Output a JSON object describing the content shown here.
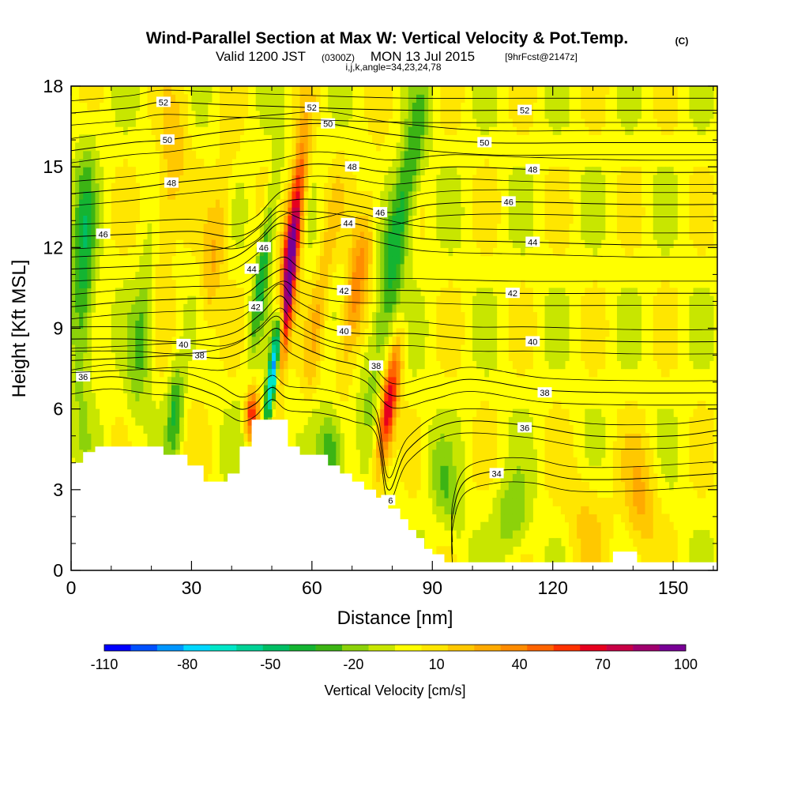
{
  "title": {
    "main": "Wind-Parallel Section at Max W: Vertical Velocity & Pot.Temp.",
    "main_unit": "(C)",
    "valid_prefix": "Valid 1200 JST",
    "valid_utc": "(0300Z)",
    "valid_date": "MON 13 Jul 2015",
    "forecast": "[9hrFcst@2147z]",
    "indices": "i,j,k,angle=34,23,24,78"
  },
  "chart_data": {
    "type": "heatmap",
    "xlabel": "Distance [nm]",
    "ylabel": "Height [Kft MSL]",
    "xlim": [
      0,
      161
    ],
    "ylim": [
      0,
      18
    ],
    "xticks": [
      0,
      30,
      60,
      90,
      120,
      150
    ],
    "yticks": [
      0,
      3,
      6,
      9,
      12,
      15,
      18
    ],
    "grid": false,
    "colorbar": {
      "label": "Vertical Velocity [cm/s]",
      "tick_labels": [
        "-110",
        "-80",
        "-50",
        "-20",
        "10",
        "40",
        "70",
        "100"
      ],
      "tick_values": [
        -110,
        -80,
        -50,
        -20,
        10,
        40,
        70,
        100
      ],
      "colors": [
        "#0000ff",
        "#0050ff",
        "#0096ff",
        "#00d7ff",
        "#00e6c8",
        "#00d296",
        "#00be64",
        "#14b432",
        "#3cb414",
        "#8cd20a",
        "#c8e600",
        "#ffff00",
        "#ffe600",
        "#ffc800",
        "#ffaa00",
        "#ff8c00",
        "#ff6400",
        "#ff3200",
        "#e6001e",
        "#c80046",
        "#a0006e",
        "#780096"
      ]
    },
    "terrain_kft": [
      [
        0,
        4.0
      ],
      [
        3,
        4.0
      ],
      [
        3,
        4.4
      ],
      [
        6,
        4.4
      ],
      [
        6,
        4.6
      ],
      [
        23,
        4.6
      ],
      [
        23,
        4.3
      ],
      [
        29,
        4.3
      ],
      [
        29,
        3.9
      ],
      [
        33,
        3.9
      ],
      [
        33,
        3.3
      ],
      [
        39,
        3.3
      ],
      [
        39,
        3.6
      ],
      [
        42,
        3.6
      ],
      [
        42,
        4.6
      ],
      [
        45,
        4.6
      ],
      [
        45,
        5.6
      ],
      [
        54,
        5.6
      ],
      [
        54,
        4.6
      ],
      [
        57,
        4.6
      ],
      [
        57,
        4.3
      ],
      [
        64,
        4.3
      ],
      [
        64,
        3.9
      ],
      [
        67,
        3.9
      ],
      [
        67,
        3.6
      ],
      [
        70,
        3.6
      ],
      [
        70,
        3.3
      ],
      [
        73,
        3.3
      ],
      [
        73,
        3.0
      ],
      [
        76,
        3.0
      ],
      [
        76,
        2.7
      ],
      [
        79,
        2.7
      ],
      [
        79,
        2.3
      ],
      [
        82,
        2.3
      ],
      [
        82,
        1.9
      ],
      [
        84,
        1.9
      ],
      [
        84,
        1.5
      ],
      [
        86,
        1.5
      ],
      [
        86,
        1.2
      ],
      [
        88,
        1.2
      ],
      [
        88,
        0.8
      ],
      [
        90,
        0.8
      ],
      [
        90,
        0.6
      ],
      [
        93,
        0.6
      ],
      [
        93,
        0.3
      ],
      [
        135,
        0.3
      ],
      [
        135,
        0.7
      ],
      [
        141,
        0.7
      ],
      [
        141,
        0.3
      ],
      [
        161,
        0.3
      ]
    ],
    "velocity_features": [
      {
        "x": 55,
        "y": 12.0,
        "sx": 1.4,
        "sy": 2.6,
        "tilt": 0.24,
        "w": 100
      },
      {
        "x": 53,
        "y": 9.5,
        "sx": 1.0,
        "sy": 1.6,
        "tilt": 0.24,
        "w": 60
      },
      {
        "x": 51,
        "y": 8.0,
        "sx": 0.9,
        "sy": 1.9,
        "tilt": 0.3,
        "w": -110
      },
      {
        "x": 48,
        "y": 11.5,
        "sx": 1.2,
        "sy": 2.5,
        "tilt": 0.3,
        "w": -40
      },
      {
        "x": 79,
        "y": 6.0,
        "sx": 1.5,
        "sy": 1.7,
        "tilt": 0.3,
        "w": 75
      },
      {
        "x": 71,
        "y": 10.5,
        "sx": 2.0,
        "sy": 2.5,
        "tilt": 0.35,
        "w": 40
      },
      {
        "x": 80,
        "y": 11.0,
        "sx": 2.3,
        "sy": 3.5,
        "tilt": 0.4,
        "w": -35
      },
      {
        "x": 84,
        "y": 15.0,
        "sx": 2.0,
        "sy": 2.5,
        "tilt": 0.45,
        "w": -20
      },
      {
        "x": 3,
        "y": 11.0,
        "sx": 2.0,
        "sy": 3.2,
        "tilt": 0.05,
        "w": -40
      },
      {
        "x": 18,
        "y": 9.0,
        "sx": 2.0,
        "sy": 2.5,
        "tilt": 0.2,
        "w": -30
      },
      {
        "x": 26,
        "y": 6.0,
        "sx": 1.3,
        "sy": 1.2,
        "tilt": 0.1,
        "w": -35
      },
      {
        "x": 65,
        "y": 4.5,
        "sx": 2.2,
        "sy": 1.2,
        "tilt": 0.0,
        "w": -40
      },
      {
        "x": 45,
        "y": 5.8,
        "sx": 1.2,
        "sy": 0.7,
        "tilt": 0.0,
        "w": 60
      },
      {
        "x": 36,
        "y": 12.0,
        "sx": 2.0,
        "sy": 2.5,
        "tilt": 0.3,
        "w": 25
      },
      {
        "x": 24,
        "y": 14.0,
        "sx": 2.5,
        "sy": 3.0,
        "tilt": 0.3,
        "w": 25
      },
      {
        "x": 110,
        "y": 2.0,
        "sx": 3.0,
        "sy": 1.0,
        "tilt": 0.0,
        "w": -25
      },
      {
        "x": 93,
        "y": 3.0,
        "sx": 2.5,
        "sy": 1.5,
        "tilt": -0.5,
        "w": -20
      },
      {
        "x": 142,
        "y": 2.5,
        "sx": 3.0,
        "sy": 1.5,
        "tilt": 0.0,
        "w": 25
      },
      {
        "x": 128,
        "y": 2.0,
        "sx": 4.0,
        "sy": 1.5,
        "tilt": 0.0,
        "w": 15
      },
      {
        "x": 62,
        "y": 10.0,
        "sx": 1.5,
        "sy": 3.0,
        "tilt": 0.3,
        "w": 20
      }
    ],
    "theta_contours": [
      {
        "level": 34,
        "labels": [
          [
            106,
            3.6
          ]
        ],
        "points": [
          [
            95,
            0.6
          ],
          [
            95,
            2.0
          ],
          [
            98,
            3.3
          ],
          [
            106,
            3.7
          ],
          [
            115,
            3.7
          ],
          [
            125,
            3.4
          ],
          [
            140,
            3.4
          ],
          [
            161,
            3.6
          ]
        ]
      },
      {
        "level": 36,
        "labels": [
          [
            3,
            7.2
          ],
          [
            79,
            2.6
          ],
          [
            113,
            5.3
          ]
        ],
        "points": [
          [
            0,
            7.0
          ],
          [
            10,
            7.2
          ],
          [
            20,
            7.0
          ],
          [
            28,
            6.9
          ],
          [
            36,
            6.5
          ],
          [
            42,
            6.0
          ],
          [
            46,
            6.2
          ],
          [
            50,
            6.8
          ],
          [
            54,
            6.4
          ],
          [
            62,
            6.3
          ],
          [
            70,
            6.0
          ],
          [
            76,
            5.5
          ],
          [
            79,
            3.0
          ],
          [
            84,
            4.5
          ],
          [
            95,
            5.5
          ],
          [
            113,
            5.4
          ],
          [
            130,
            5.0
          ],
          [
            150,
            5.0
          ],
          [
            161,
            5.2
          ]
        ]
      },
      {
        "level": 38,
        "labels": [
          [
            32,
            8.0
          ],
          [
            76,
            7.6
          ],
          [
            118,
            6.6
          ]
        ],
        "points": [
          [
            0,
            7.8
          ],
          [
            15,
            7.9
          ],
          [
            28,
            8.0
          ],
          [
            38,
            7.9
          ],
          [
            46,
            8.4
          ],
          [
            51,
            9.0
          ],
          [
            55,
            8.5
          ],
          [
            64,
            7.9
          ],
          [
            73,
            7.5
          ],
          [
            80,
            6.5
          ],
          [
            90,
            6.8
          ],
          [
            100,
            7.1
          ],
          [
            118,
            6.7
          ],
          [
            140,
            6.6
          ],
          [
            161,
            6.6
          ]
        ]
      },
      {
        "level": 40,
        "labels": [
          [
            28,
            8.4
          ],
          [
            68,
            8.9
          ],
          [
            115,
            8.5
          ]
        ],
        "points": [
          [
            0,
            8.6
          ],
          [
            15,
            8.6
          ],
          [
            28,
            8.5
          ],
          [
            40,
            8.8
          ],
          [
            47,
            9.5
          ],
          [
            52,
            10.2
          ],
          [
            56,
            9.6
          ],
          [
            64,
            9.0
          ],
          [
            72,
            8.8
          ],
          [
            85,
            8.8
          ],
          [
            100,
            8.6
          ],
          [
            115,
            8.6
          ],
          [
            140,
            8.5
          ],
          [
            161,
            8.5
          ]
        ]
      },
      {
        "level": 42,
        "labels": [
          [
            46,
            9.8
          ],
          [
            68,
            10.4
          ],
          [
            110,
            10.3
          ]
        ],
        "points": [
          [
            0,
            9.8
          ],
          [
            15,
            10.0
          ],
          [
            30,
            10.1
          ],
          [
            42,
            10.2
          ],
          [
            48,
            10.8
          ],
          [
            53,
            11.2
          ],
          [
            57,
            10.8
          ],
          [
            64,
            10.5
          ],
          [
            72,
            10.4
          ],
          [
            85,
            10.4
          ],
          [
            110,
            10.3
          ],
          [
            140,
            10.3
          ],
          [
            161,
            10.3
          ]
        ]
      },
      {
        "level": 44,
        "labels": [
          [
            45,
            11.2
          ],
          [
            69,
            12.9
          ],
          [
            115,
            12.2
          ]
        ],
        "points": [
          [
            0,
            11.2
          ],
          [
            15,
            11.3
          ],
          [
            30,
            11.4
          ],
          [
            40,
            11.6
          ],
          [
            47,
            12.3
          ],
          [
            52,
            12.9
          ],
          [
            58,
            12.6
          ],
          [
            64,
            12.7
          ],
          [
            70,
            12.9
          ],
          [
            78,
            12.6
          ],
          [
            90,
            12.3
          ],
          [
            115,
            12.2
          ],
          [
            140,
            12.1
          ],
          [
            161,
            12.1
          ]
        ]
      },
      {
        "level": 46,
        "labels": [
          [
            8,
            12.5
          ],
          [
            48,
            12.0
          ],
          [
            77,
            13.3
          ],
          [
            109,
            13.7
          ]
        ],
        "points": [
          [
            0,
            12.4
          ],
          [
            15,
            12.5
          ],
          [
            30,
            12.6
          ],
          [
            40,
            12.4
          ],
          [
            46,
            12.7
          ],
          [
            52,
            13.6
          ],
          [
            58,
            13.8
          ],
          [
            66,
            13.7
          ],
          [
            73,
            13.5
          ],
          [
            80,
            13.3
          ],
          [
            90,
            13.6
          ],
          [
            109,
            13.7
          ],
          [
            140,
            13.6
          ],
          [
            161,
            13.6
          ]
        ]
      },
      {
        "level": 48,
        "labels": [
          [
            25,
            14.4
          ],
          [
            70,
            15.0
          ],
          [
            115,
            14.9
          ]
        ],
        "points": [
          [
            0,
            14.0
          ],
          [
            15,
            14.2
          ],
          [
            25,
            14.4
          ],
          [
            38,
            14.6
          ],
          [
            50,
            14.8
          ],
          [
            60,
            15.1
          ],
          [
            70,
            15.0
          ],
          [
            80,
            14.8
          ],
          [
            95,
            15.0
          ],
          [
            115,
            14.9
          ],
          [
            140,
            14.8
          ],
          [
            161,
            14.8
          ]
        ]
      },
      {
        "level": 50,
        "labels": [
          [
            24,
            16.0
          ],
          [
            64,
            16.6
          ],
          [
            103,
            15.9
          ]
        ],
        "points": [
          [
            0,
            15.6
          ],
          [
            15,
            15.9
          ],
          [
            24,
            16.0
          ],
          [
            38,
            16.3
          ],
          [
            52,
            16.5
          ],
          [
            64,
            16.6
          ],
          [
            80,
            16.2
          ],
          [
            103,
            15.9
          ],
          [
            130,
            15.9
          ],
          [
            161,
            15.9
          ]
        ]
      },
      {
        "level": 52,
        "labels": [
          [
            23,
            17.4
          ],
          [
            60,
            17.2
          ],
          [
            113,
            17.1
          ]
        ],
        "points": [
          [
            0,
            17.0
          ],
          [
            15,
            17.2
          ],
          [
            23,
            17.4
          ],
          [
            40,
            17.3
          ],
          [
            60,
            17.2
          ],
          [
            85,
            17.1
          ],
          [
            113,
            17.1
          ],
          [
            140,
            17.1
          ],
          [
            161,
            17.1
          ]
        ]
      }
    ]
  }
}
